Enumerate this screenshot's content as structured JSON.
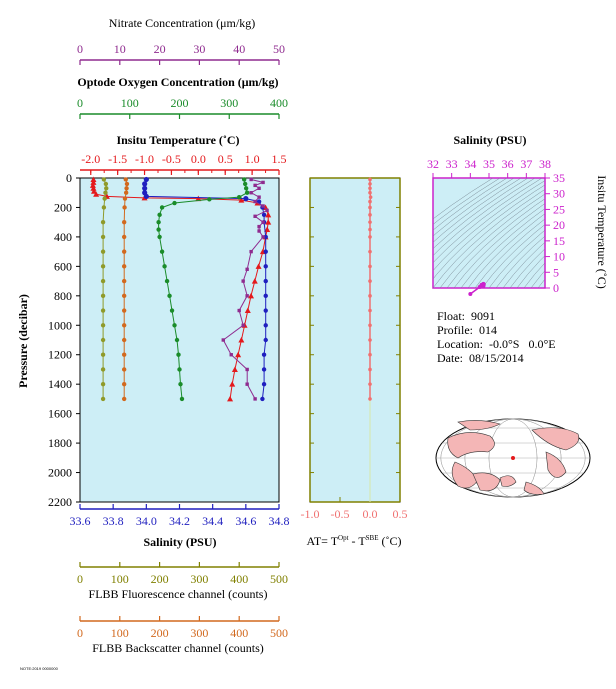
{
  "colors": {
    "panel_bg": "#cdeef6",
    "nitrate": "#8f2b8f",
    "oxygen": "#1a8c2a",
    "temperature": "#e4191c",
    "salinity": "#1f1fbf",
    "fluorescence": "#8f9a2a",
    "backscatter": "#d2691e",
    "delta_t": "#f07070",
    "ts_axis": "#cc22cc",
    "axis_olive": "#808000"
  },
  "info": {
    "float": "Float:  9091",
    "profile": "Profile:  014",
    "location": "Location:  -0.0°S   0.0°E",
    "date": "Date:  08/15/2014"
  },
  "footer_text": "NOTE:2019 0000000",
  "chart_data": [
    {
      "type": "line",
      "id": "main-profile",
      "ylabel": "Pressure (decibar)",
      "ylim": [
        2200,
        0
      ],
      "yticks": [
        0,
        200,
        400,
        600,
        800,
        1000,
        1200,
        1400,
        1600,
        1800,
        2000,
        2200
      ],
      "grid": false,
      "axes": [
        {
          "key": "nitrate",
          "label": "Nitrate Concentration (μm/kg)",
          "range": [
            0,
            50
          ],
          "ticks": [
            0,
            10,
            20,
            30,
            40,
            50
          ],
          "position": "top"
        },
        {
          "key": "oxygen",
          "label": "Optode Oxygen Concentration (μm/kg)",
          "range": [
            0,
            400
          ],
          "ticks": [
            0,
            100,
            200,
            300,
            400
          ],
          "position": "top"
        },
        {
          "key": "temperature",
          "label": "Insitu Temperature (˚C)",
          "range": [
            -2.2,
            1.5
          ],
          "ticks": [
            -2.0,
            -1.5,
            -1.0,
            -0.5,
            0.0,
            0.5,
            1.0,
            1.5
          ],
          "position": "top"
        },
        {
          "key": "salinity",
          "label": "Salinity (PSU)",
          "range": [
            33.6,
            34.8
          ],
          "ticks": [
            33.6,
            33.8,
            34.0,
            34.2,
            34.4,
            34.6,
            34.8
          ],
          "position": "bottom"
        },
        {
          "key": "fluorescence",
          "label": "FLBB Fluorescence channel (counts)",
          "range": [
            0,
            500
          ],
          "ticks": [
            0,
            100,
            200,
            300,
            400,
            500
          ],
          "position": "bottom"
        },
        {
          "key": "backscatter",
          "label": "FLBB Backscatter channel (counts)",
          "range": [
            0,
            500
          ],
          "ticks": [
            0,
            100,
            200,
            300,
            400,
            500
          ],
          "position": "bottom"
        }
      ],
      "series": [
        {
          "key": "temperature",
          "marker": "triangle",
          "points": [
            [
              -1.95,
              10
            ],
            [
              -1.95,
              30
            ],
            [
              -1.96,
              50
            ],
            [
              -1.95,
              70
            ],
            [
              -1.94,
              90
            ],
            [
              -1.9,
              110
            ],
            [
              -1.7,
              125
            ],
            [
              -1.0,
              135
            ],
            [
              0.0,
              140
            ],
            [
              0.8,
              150
            ],
            [
              1.1,
              170
            ],
            [
              1.25,
              200
            ],
            [
              1.3,
              250
            ],
            [
              1.3,
              300
            ],
            [
              1.28,
              350
            ],
            [
              1.25,
              400
            ],
            [
              1.2,
              500
            ],
            [
              1.12,
              600
            ],
            [
              1.05,
              700
            ],
            [
              0.98,
              800
            ],
            [
              0.92,
              900
            ],
            [
              0.86,
              1000
            ],
            [
              0.8,
              1100
            ],
            [
              0.74,
              1200
            ],
            [
              0.68,
              1300
            ],
            [
              0.63,
              1400
            ],
            [
              0.59,
              1500
            ]
          ]
        },
        {
          "key": "salinity",
          "marker": "circle",
          "points": [
            [
              34.0,
              10
            ],
            [
              33.99,
              40
            ],
            [
              33.99,
              70
            ],
            [
              33.99,
              100
            ],
            [
              34.0,
              125
            ],
            [
              34.6,
              140
            ],
            [
              34.68,
              160
            ],
            [
              34.7,
              200
            ],
            [
              34.71,
              250
            ],
            [
              34.71,
              300
            ],
            [
              34.72,
              400
            ],
            [
              34.72,
              500
            ],
            [
              34.72,
              600
            ],
            [
              34.72,
              700
            ],
            [
              34.72,
              800
            ],
            [
              34.72,
              900
            ],
            [
              34.72,
              1000
            ],
            [
              34.72,
              1100
            ],
            [
              34.71,
              1200
            ],
            [
              34.71,
              1300
            ],
            [
              34.71,
              1400
            ],
            [
              34.7,
              1500
            ]
          ]
        },
        {
          "key": "oxygen",
          "marker": "circle",
          "points": [
            [
              330,
              10
            ],
            [
              332,
              40
            ],
            [
              334,
              70
            ],
            [
              336,
              100
            ],
            [
              320,
              130
            ],
            [
              260,
              145
            ],
            [
              190,
              170
            ],
            [
              165,
              200
            ],
            [
              160,
              250
            ],
            [
              158,
              300
            ],
            [
              158,
              350
            ],
            [
              160,
              400
            ],
            [
              165,
              500
            ],
            [
              170,
              600
            ],
            [
              175,
              700
            ],
            [
              180,
              800
            ],
            [
              185,
              900
            ],
            [
              190,
              1000
            ],
            [
              195,
              1100
            ],
            [
              198,
              1200
            ],
            [
              200,
              1300
            ],
            [
              202,
              1400
            ],
            [
              205,
              1500
            ]
          ]
        },
        {
          "key": "nitrate",
          "marker": "square",
          "points": [
            [
              43,
              10
            ],
            [
              46,
              30
            ],
            [
              44,
              50
            ],
            [
              45,
              70
            ],
            [
              43,
              100
            ],
            [
              45,
              130
            ],
            [
              44,
              160
            ],
            [
              46,
              190
            ],
            [
              47,
              220
            ],
            [
              44,
              260
            ],
            [
              46,
              300
            ],
            [
              45,
              330
            ],
            [
              45,
              360
            ],
            [
              46,
              400
            ],
            [
              43,
              500
            ],
            [
              42,
              620
            ],
            [
              41,
              700
            ],
            [
              42,
              800
            ],
            [
              40,
              900
            ],
            [
              41,
              1000
            ],
            [
              36,
              1100
            ],
            [
              38,
              1200
            ],
            [
              42,
              1300
            ],
            [
              42,
              1400
            ],
            [
              44,
              1500
            ]
          ]
        },
        {
          "key": "fluorescence",
          "marker": "circle",
          "points": [
            [
              60,
              10
            ],
            [
              65,
              40
            ],
            [
              66,
              70
            ],
            [
              64,
              100
            ],
            [
              62,
              140
            ],
            [
              60,
              200
            ],
            [
              58,
              300
            ],
            [
              58,
              400
            ],
            [
              58,
              500
            ],
            [
              58,
              600
            ],
            [
              58,
              700
            ],
            [
              58,
              800
            ],
            [
              58,
              900
            ],
            [
              58,
              1000
            ],
            [
              58,
              1100
            ],
            [
              58,
              1200
            ],
            [
              58,
              1300
            ],
            [
              58,
              1400
            ],
            [
              58,
              1500
            ]
          ]
        },
        {
          "key": "backscatter",
          "marker": "circle",
          "points": [
            [
              115,
              10
            ],
            [
              118,
              40
            ],
            [
              117,
              70
            ],
            [
              116,
              100
            ],
            [
              113,
              140
            ],
            [
              112,
              200
            ],
            [
              111,
              300
            ],
            [
              111,
              400
            ],
            [
              111,
              500
            ],
            [
              111,
              600
            ],
            [
              111,
              700
            ],
            [
              111,
              800
            ],
            [
              111,
              900
            ],
            [
              111,
              1000
            ],
            [
              111,
              1100
            ],
            [
              111,
              1200
            ],
            [
              111,
              1300
            ],
            [
              111,
              1400
            ],
            [
              111,
              1500
            ]
          ]
        }
      ]
    },
    {
      "type": "line",
      "id": "delta-t",
      "xlabel": "AT= T",
      "xlabel_sup1": "Opt",
      "xlabel_mid": " - T",
      "xlabel_sup2": "SBE",
      "xlabel_unit": " (˚C)",
      "xlim": [
        -1.0,
        0.5
      ],
      "xticks": [
        "-1.0",
        "-0.5",
        "0.0",
        "0.5"
      ],
      "ylim": [
        2200,
        0
      ],
      "series": [
        {
          "name": "",
          "points": [
            [
              0.0,
              10
            ],
            [
              0.0,
              40
            ],
            [
              0.0,
              70
            ],
            [
              0.0,
              100
            ],
            [
              0.01,
              130
            ],
            [
              0.0,
              160
            ],
            [
              0.0,
              200
            ],
            [
              0.0,
              250
            ],
            [
              0.0,
              300
            ],
            [
              0.0,
              350
            ],
            [
              0.0,
              400
            ],
            [
              0.0,
              500
            ],
            [
              0.0,
              600
            ],
            [
              0.0,
              700
            ],
            [
              0.0,
              800
            ],
            [
              0.0,
              900
            ],
            [
              0.0,
              1000
            ],
            [
              0.0,
              1100
            ],
            [
              0.0,
              1200
            ],
            [
              0.0,
              1300
            ],
            [
              0.0,
              1400
            ],
            [
              0.0,
              1500
            ]
          ]
        }
      ]
    },
    {
      "type": "scatter",
      "id": "ts-diagram",
      "title": "Salinity (PSU)",
      "ylabel": "Insitu Temperature (˚C)",
      "xlim": [
        32,
        38
      ],
      "xticks": [
        32,
        33,
        34,
        35,
        36,
        37,
        38
      ],
      "ylim": [
        0,
        35
      ],
      "yticks": [
        0,
        5,
        10,
        15,
        20,
        25,
        30,
        35
      ],
      "points": [
        [
          34.6,
          1.0
        ],
        [
          34.7,
          1.3
        ],
        [
          34.72,
          1.1
        ],
        [
          34.7,
          0.6
        ],
        [
          34.5,
          0.3
        ],
        [
          34.0,
          -1.9
        ]
      ]
    }
  ]
}
